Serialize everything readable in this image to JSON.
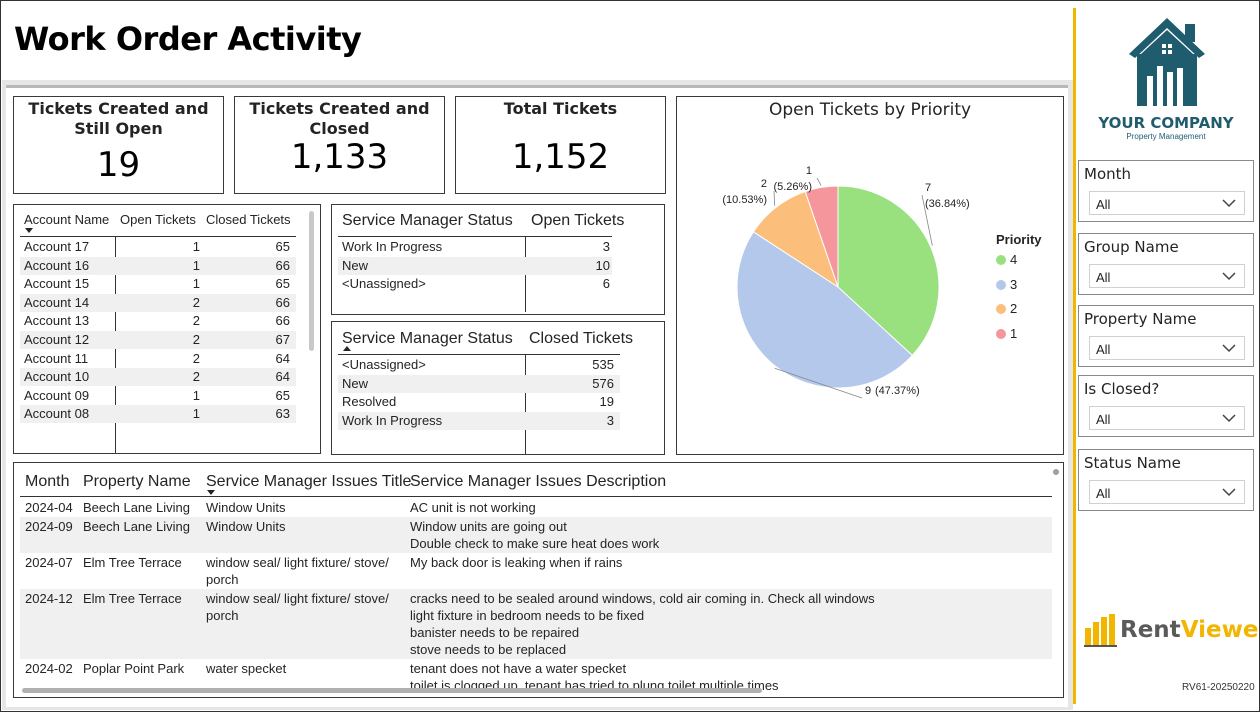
{
  "title": "Work Order Activity",
  "kpis": [
    {
      "label": "Tickets Created and Still Open",
      "value": "19"
    },
    {
      "label": "Tickets Created and Closed",
      "value": "1,133"
    },
    {
      "label": "Total Tickets",
      "value": "1,152"
    }
  ],
  "account_table": {
    "headers": [
      "Account Name",
      "Open Tickets",
      "Closed Tickets"
    ],
    "rows": [
      [
        "Account 17",
        "1",
        "65"
      ],
      [
        "Account 16",
        "1",
        "66"
      ],
      [
        "Account 15",
        "1",
        "65"
      ],
      [
        "Account 14",
        "2",
        "66"
      ],
      [
        "Account 13",
        "2",
        "66"
      ],
      [
        "Account 12",
        "2",
        "67"
      ],
      [
        "Account 11",
        "2",
        "64"
      ],
      [
        "Account 10",
        "2",
        "64"
      ],
      [
        "Account 09",
        "1",
        "65"
      ],
      [
        "Account 08",
        "1",
        "63"
      ]
    ]
  },
  "open_status_table": {
    "headers": [
      "Service Manager Status",
      "Open Tickets"
    ],
    "rows": [
      [
        "Work In Progress",
        "3"
      ],
      [
        "New",
        "10"
      ],
      [
        "<Unassigned>",
        "6"
      ]
    ]
  },
  "closed_status_table": {
    "headers": [
      "Service Manager Status",
      "Closed Tickets"
    ],
    "rows": [
      [
        "<Unassigned>",
        "535"
      ],
      [
        "New",
        "576"
      ],
      [
        "Resolved",
        "19"
      ],
      [
        "Work In Progress",
        "3"
      ]
    ]
  },
  "chart_data": {
    "type": "pie",
    "title": "Open Tickets by Priority",
    "legend_title": "Priority",
    "legend_position": "right",
    "slices": [
      {
        "label": "4",
        "value": 7,
        "pct": "(36.84%)",
        "color": "#99e07f"
      },
      {
        "label": "3",
        "value": 9,
        "pct": "(47.37%)",
        "color": "#b3c8ea"
      },
      {
        "label": "2",
        "value": 2,
        "pct": "(10.53%)",
        "color": "#fbbf7b"
      },
      {
        "label": "1",
        "value": 1,
        "pct": "(5.26%)",
        "color": "#f5959c"
      }
    ]
  },
  "issues_table": {
    "headers": [
      "Month",
      "Property Name",
      "Service Manager Issues Title",
      "Service Manager Issues Description"
    ],
    "rows": [
      {
        "month": "2024-04",
        "property": "Beech Lane Living",
        "title": [
          "Window Units"
        ],
        "desc": [
          "AC unit is not working"
        ]
      },
      {
        "month": "2024-09",
        "property": "Beech Lane Living",
        "title": [
          "Window Units"
        ],
        "desc": [
          "Window units are going out",
          "Double check to make sure heat does work"
        ]
      },
      {
        "month": "2024-07",
        "property": "Elm Tree Terrace",
        "title": [
          "window seal/ light fixture/ stove/",
          "porch"
        ],
        "desc": [
          "My back door is leaking when if rains"
        ]
      },
      {
        "month": "2024-12",
        "property": "Elm Tree Terrace",
        "title": [
          "window seal/ light fixture/ stove/",
          "porch"
        ],
        "desc": [
          "cracks need to be sealed around windows, cold air coming in. Check all windows",
          "light fixture in bedroom needs to be fixed",
          "banister needs to be repaired",
          "stove needs to be replaced"
        ]
      },
      {
        "month": "2024-02",
        "property": "Poplar Point Park",
        "title": [
          "water specket"
        ],
        "desc": [
          "tenant does not have a water specket",
          "toilet is clogged up, tenant has tried to plung toilet multiple times"
        ]
      }
    ]
  },
  "slicers": [
    {
      "label": "Month",
      "value": "All"
    },
    {
      "label": "Group Name",
      "value": "All"
    },
    {
      "label": "Property Name",
      "value": "All"
    },
    {
      "label": "Is Closed?",
      "value": "All"
    },
    {
      "label": "Status Name",
      "value": "All"
    }
  ],
  "logo": {
    "company": "YOUR COMPANY",
    "tagline": "Property Management",
    "brand_color": "#1f5c6e"
  },
  "rentviewer": {
    "name_part1": "Rent",
    "name_part2": "Viewer",
    "accent": "#f2b600"
  },
  "version": "RV61-20250220"
}
